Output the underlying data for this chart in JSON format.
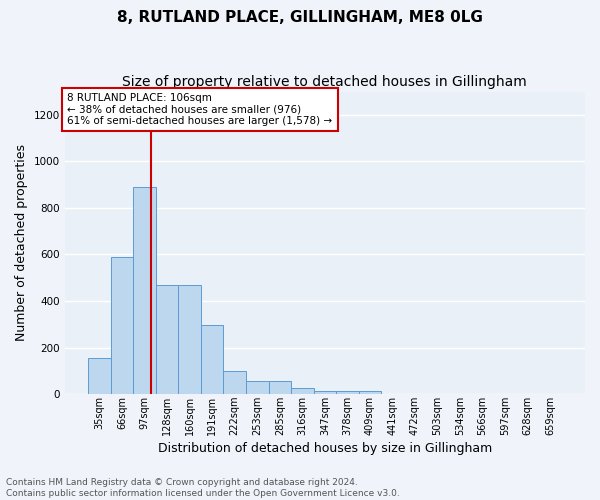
{
  "title": "8, RUTLAND PLACE, GILLINGHAM, ME8 0LG",
  "subtitle": "Size of property relative to detached houses in Gillingham",
  "xlabel": "Distribution of detached houses by size in Gillingham",
  "ylabel": "Number of detached properties",
  "bar_color": "#bdd7ee",
  "bar_edge_color": "#5b9bd5",
  "bg_color": "#eaf0f8",
  "grid_color": "#ffffff",
  "fig_bg_color": "#f0f4fa",
  "categories": [
    "35sqm",
    "66sqm",
    "97sqm",
    "128sqm",
    "160sqm",
    "191sqm",
    "222sqm",
    "253sqm",
    "285sqm",
    "316sqm",
    "347sqm",
    "378sqm",
    "409sqm",
    "441sqm",
    "472sqm",
    "503sqm",
    "534sqm",
    "566sqm",
    "597sqm",
    "628sqm",
    "659sqm"
  ],
  "values": [
    155,
    590,
    890,
    470,
    470,
    295,
    100,
    58,
    58,
    25,
    15,
    15,
    12,
    0,
    0,
    0,
    0,
    0,
    0,
    0,
    0
  ],
  "ylim": [
    0,
    1300
  ],
  "yticks": [
    0,
    200,
    400,
    600,
    800,
    1000,
    1200
  ],
  "annotation_text_line1": "8 RUTLAND PLACE: 106sqm",
  "annotation_text_line2": "← 38% of detached houses are smaller (976)",
  "annotation_text_line3": "61% of semi-detached houses are larger (1,578) →",
  "vline_color": "#cc0000",
  "annotation_box_color": "#ffffff",
  "annotation_box_edge": "#cc0000",
  "footer_line1": "Contains HM Land Registry data © Crown copyright and database right 2024.",
  "footer_line2": "Contains public sector information licensed under the Open Government Licence v3.0.",
  "title_fontsize": 11,
  "subtitle_fontsize": 10,
  "ylabel_fontsize": 9,
  "xlabel_fontsize": 9,
  "tick_fontsize": 7,
  "ann_fontsize": 7.5,
  "footer_fontsize": 6.5
}
